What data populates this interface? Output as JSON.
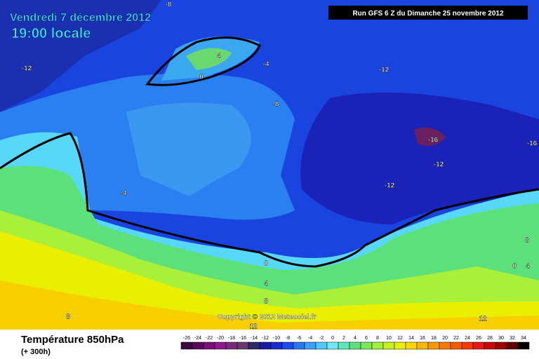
{
  "header": {
    "date": "Vendredi 7 décembre 2012",
    "time": "19:00 locale",
    "run": "Run GFS 6 Z du Dimanche 25 novembre 2012"
  },
  "copyright": "Copyright © 2012 Meteociel.fr",
  "footer": {
    "title": "Température 850hPa",
    "subtitle": "(+ 300h)"
  },
  "contour_labels": [
    -8,
    -12,
    4,
    0,
    -4,
    -12,
    -8,
    -16,
    -16,
    -12,
    -12,
    -4,
    0,
    4,
    8,
    8,
    12,
    12,
    8,
    0,
    4
  ],
  "scale": {
    "labels": [
      -26,
      -24,
      -22,
      -20,
      -18,
      -16,
      -14,
      -12,
      -10,
      -8,
      -6,
      -4,
      -2,
      0,
      2,
      4,
      6,
      8,
      10,
      12,
      14,
      16,
      18,
      20,
      22,
      24,
      26,
      28,
      30,
      32,
      34
    ],
    "colors": [
      "#3c0a3c",
      "#5a0a5a",
      "#78107a",
      "#8c1a8c",
      "#7a2a7a",
      "#6a3a6a",
      "#2a2a6a",
      "#1a1aa0",
      "#1a2ad0",
      "#1a4af0",
      "#2a78f0",
      "#3aa0f8",
      "#50c8f8",
      "#70e8f8",
      "#5ce8b8",
      "#5ce07a",
      "#7ae85a",
      "#a0f03a",
      "#c8f01a",
      "#e8f000",
      "#f8d800",
      "#f8b800",
      "#f89800",
      "#f87800",
      "#f85800",
      "#f83800",
      "#e81818",
      "#c80808",
      "#a00000",
      "#600000",
      "#000000"
    ]
  }
}
